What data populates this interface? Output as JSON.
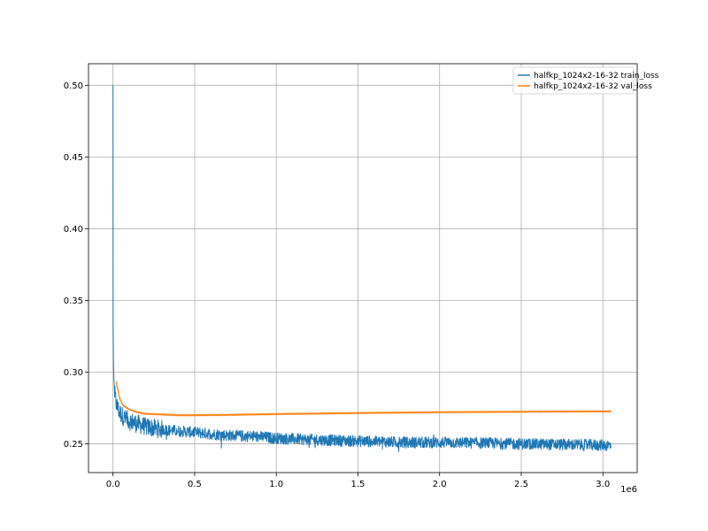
{
  "chart_data": {
    "type": "line",
    "title": "",
    "xlabel": "",
    "ylabel": "",
    "x_scale_label": "1e6",
    "xlim": [
      -150000,
      3210000
    ],
    "ylim": [
      0.23,
      0.515
    ],
    "x_ticks": [
      0,
      500000,
      1000000,
      1500000,
      2000000,
      2500000,
      3000000
    ],
    "x_tick_labels": [
      "0.0",
      "0.5",
      "1.0",
      "1.5",
      "2.0",
      "2.5",
      "3.0"
    ],
    "y_ticks": [
      0.25,
      0.3,
      0.35,
      0.4,
      0.45,
      0.5
    ],
    "y_tick_labels": [
      "0.25",
      "0.30",
      "0.35",
      "0.40",
      "0.45",
      "0.50"
    ],
    "grid": true,
    "legend_position": "top-right",
    "series": [
      {
        "name": "halfkp_1024x2-16-32 train_loss",
        "color": "#1f77b4",
        "x": [
          0,
          1000,
          3000,
          6000,
          10000,
          20000,
          40000,
          70000,
          100000,
          150000,
          200000,
          300000,
          400000,
          500000,
          700000,
          900000,
          1000000,
          1200000,
          1500000,
          1800000,
          2000000,
          2300000,
          2500000,
          2800000,
          3050000
        ],
        "y": [
          0.5,
          0.33,
          0.305,
          0.295,
          0.285,
          0.278,
          0.272,
          0.268,
          0.266,
          0.264,
          0.262,
          0.26,
          0.259,
          0.258,
          0.256,
          0.255,
          0.254,
          0.253,
          0.252,
          0.251,
          0.251,
          0.2505,
          0.25,
          0.2495,
          0.249
        ],
        "noise_band": 0.004
      },
      {
        "name": "halfkp_1024x2-16-32 val_loss",
        "color": "#ff7f0e",
        "x": [
          20000,
          40000,
          60000,
          100000,
          150000,
          200000,
          300000,
          400000,
          500000,
          700000,
          1000000,
          1500000,
          2000000,
          2500000,
          3050000
        ],
        "y": [
          0.293,
          0.282,
          0.277,
          0.274,
          0.272,
          0.271,
          0.2705,
          0.27,
          0.27,
          0.2702,
          0.2708,
          0.2715,
          0.2721,
          0.2724,
          0.2727
        ]
      }
    ]
  }
}
